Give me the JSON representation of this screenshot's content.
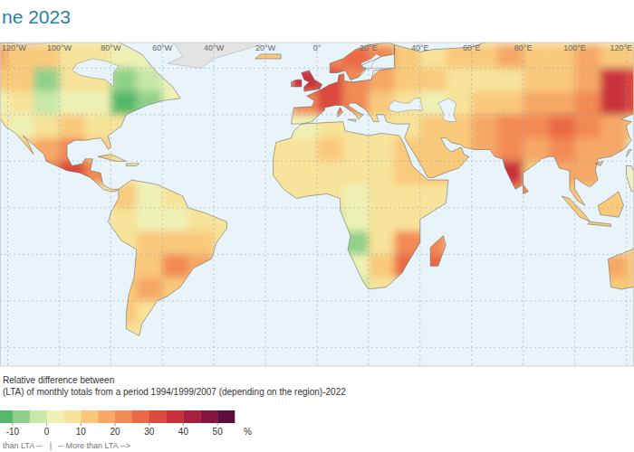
{
  "chart_data": {
    "type": "heatmap",
    "title": "ne 2023",
    "xlim": [
      -123,
      123
    ],
    "xticks": [
      {
        "value": -120,
        "label": "120°W"
      },
      {
        "value": -100,
        "label": "100°W"
      },
      {
        "value": -80,
        "label": "80°W"
      },
      {
        "value": -60,
        "label": "60°W"
      },
      {
        "value": -40,
        "label": "40°W"
      },
      {
        "value": -20,
        "label": "20°W"
      },
      {
        "value": 0,
        "label": "0°"
      },
      {
        "value": 20,
        "label": "20°E"
      },
      {
        "value": 40,
        "label": "40°E"
      },
      {
        "value": 60,
        "label": "60°E"
      },
      {
        "value": 80,
        "label": "80°E"
      },
      {
        "value": 100,
        "label": "100°E"
      },
      {
        "value": 120,
        "label": "120°E"
      }
    ],
    "ylim": [
      -68,
      71
    ],
    "yticks": [
      -60,
      -40,
      -20,
      0,
      20,
      40,
      60
    ],
    "grid": true,
    "tick_labels": "x",
    "x": [
      -125,
      -115,
      -105,
      -95,
      -85,
      -75,
      -65,
      -55,
      -45,
      -35,
      -25,
      -15,
      -5,
      5,
      15,
      25,
      35,
      45,
      55,
      65,
      75,
      85,
      95,
      105,
      115,
      125
    ],
    "y": [
      65,
      55,
      45,
      35,
      25,
      15,
      5,
      -5,
      -15,
      -25,
      -35,
      -45,
      -55
    ],
    "values": [
      [
        15,
        10,
        10,
        5,
        5,
        0,
        0,
        null,
        null,
        null,
        10,
        10,
        null,
        20,
        25,
        20,
        10,
        5,
        10,
        10,
        15,
        10,
        10,
        15,
        10,
        10
      ],
      [
        10,
        10,
        -10,
        5,
        5,
        -10,
        -5,
        0,
        null,
        null,
        null,
        null,
        35,
        30,
        20,
        15,
        10,
        10,
        5,
        5,
        5,
        10,
        10,
        15,
        35,
        30
      ],
      [
        0,
        5,
        -5,
        0,
        0,
        -15,
        -10,
        0,
        null,
        null,
        null,
        null,
        20,
        30,
        20,
        10,
        5,
        0,
        5,
        10,
        10,
        15,
        15,
        20,
        35,
        30
      ],
      [
        5,
        0,
        5,
        10,
        5,
        5,
        null,
        null,
        null,
        null,
        null,
        null,
        0,
        5,
        5,
        5,
        5,
        10,
        10,
        15,
        20,
        20,
        25,
        20,
        15,
        10
      ],
      [
        null,
        10,
        15,
        20,
        10,
        5,
        null,
        null,
        null,
        null,
        null,
        5,
        5,
        10,
        5,
        5,
        10,
        10,
        10,
        15,
        20,
        15,
        20,
        15,
        15,
        null
      ],
      [
        null,
        null,
        20,
        30,
        20,
        5,
        null,
        null,
        null,
        null,
        null,
        5,
        5,
        5,
        5,
        5,
        10,
        10,
        10,
        null,
        35,
        10,
        15,
        15,
        null,
        null
      ],
      [
        null,
        null,
        null,
        null,
        0,
        10,
        0,
        5,
        5,
        null,
        null,
        5,
        5,
        5,
        0,
        5,
        5,
        5,
        null,
        null,
        20,
        20,
        10,
        10,
        10,
        null
      ],
      [
        null,
        null,
        null,
        null,
        null,
        5,
        0,
        0,
        5,
        5,
        null,
        null,
        null,
        -5,
        0,
        5,
        5,
        5,
        null,
        null,
        null,
        null,
        10,
        10,
        10,
        null
      ],
      [
        null,
        null,
        null,
        null,
        null,
        5,
        10,
        10,
        10,
        5,
        null,
        null,
        null,
        null,
        -10,
        5,
        20,
        20,
        null,
        null,
        null,
        null,
        null,
        null,
        null,
        10
      ],
      [
        null,
        null,
        null,
        null,
        null,
        10,
        10,
        20,
        15,
        null,
        null,
        null,
        null,
        null,
        0,
        10,
        25,
        25,
        null,
        null,
        null,
        null,
        null,
        null,
        15,
        10
      ],
      [
        null,
        null,
        null,
        null,
        null,
        10,
        15,
        10,
        null,
        null,
        null,
        null,
        null,
        null,
        -5,
        5,
        null,
        null,
        null,
        null,
        null,
        null,
        null,
        null,
        10,
        10
      ],
      [
        null,
        null,
        null,
        null,
        null,
        10,
        5,
        null,
        null,
        null,
        null,
        null,
        null,
        null,
        null,
        null,
        null,
        null,
        null,
        null,
        null,
        null,
        null,
        null,
        null,
        null
      ],
      [
        null,
        null,
        null,
        null,
        null,
        5,
        5,
        null,
        null,
        null,
        null,
        null,
        null,
        null,
        null,
        null,
        null,
        null,
        null,
        null,
        null,
        null,
        null,
        null,
        null,
        null
      ]
    ],
    "colorbar": {
      "label": [
        "Relative difference between",
        "(LTA) of monthly totals from a period 1994/1999/2007 (depending on the region)-2022"
      ],
      "range": [
        -15,
        55
      ],
      "ticks": [
        -10,
        0,
        10,
        20,
        30,
        40,
        50
      ],
      "unit": "%",
      "colors": [
        "#55b86b",
        "#8fd18a",
        "#c6e8a8",
        "#eef1b5",
        "#f7e39a",
        "#f9c97b",
        "#f6a866",
        "#f28a55",
        "#ea6a46",
        "#dc4a3c",
        "#c9303c",
        "#a91f3d",
        "#86153f",
        "#5e0c3a"
      ]
    },
    "annotations": [
      "than LTA --",
      "|",
      "-- More than LTA -->"
    ]
  }
}
